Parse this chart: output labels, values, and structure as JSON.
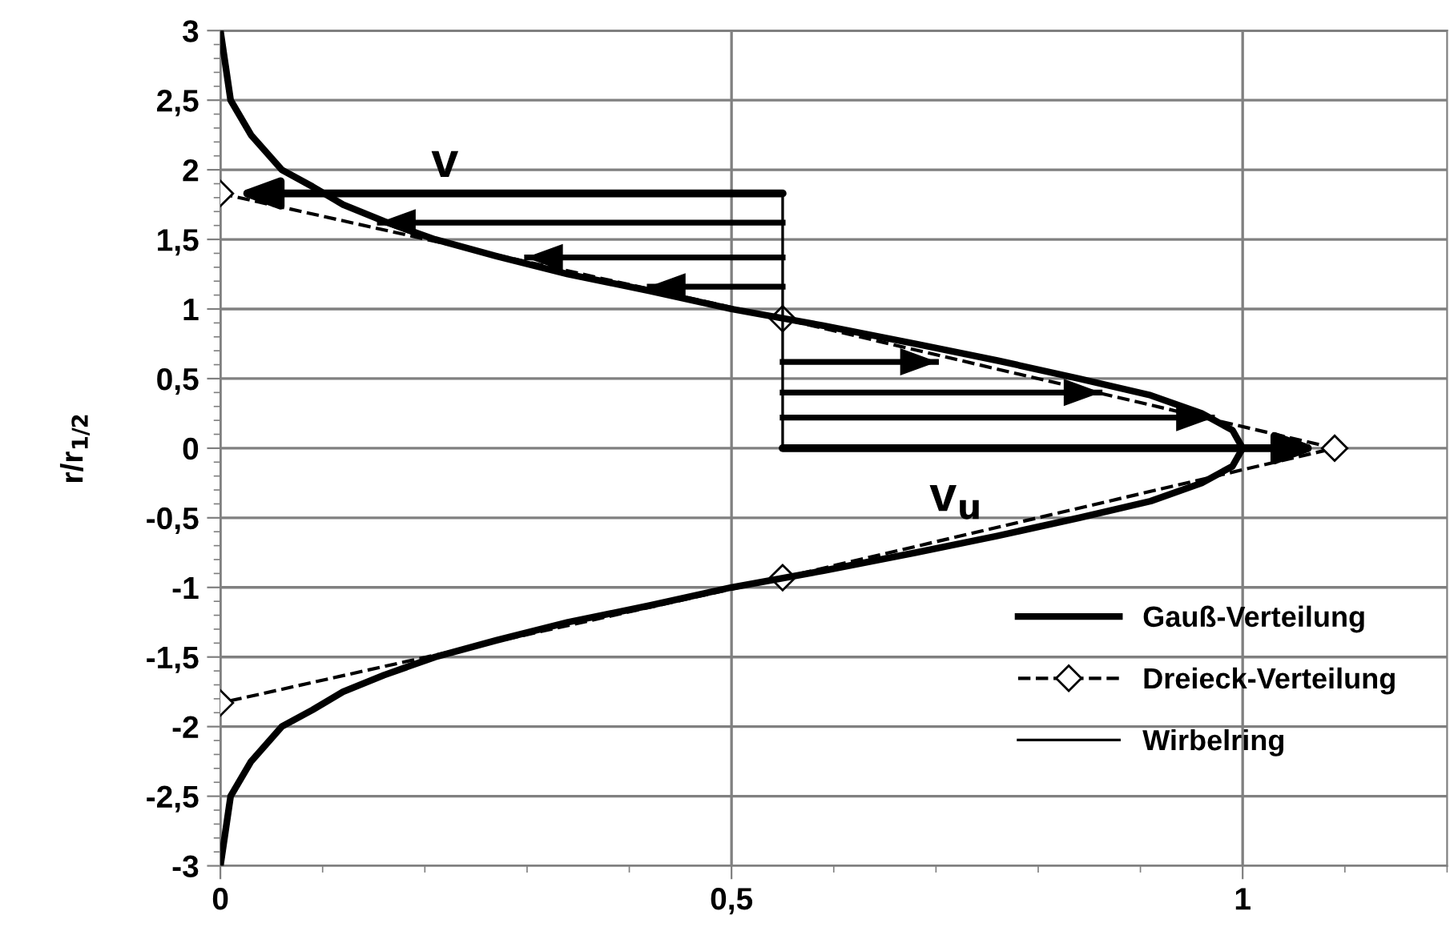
{
  "chart_data": {
    "type": "line",
    "ylabel": "r/r$_{1/2}$",
    "xlim": [
      0,
      1.2
    ],
    "ylim": [
      -3,
      3
    ],
    "xticks": [
      0,
      {
        "value": 0.5,
        "label": "0,5"
      },
      1
    ],
    "yticks": [
      -3,
      {
        "value": -2.5,
        "label": "-2,5"
      },
      -2,
      {
        "value": -1.5,
        "label": "-1,5"
      },
      -1,
      {
        "value": -0.5,
        "label": "-0,5"
      },
      0,
      {
        "value": 0.5,
        "label": "0,5"
      },
      1,
      {
        "value": 1.5,
        "label": "1,5"
      },
      2,
      {
        "value": 2.5,
        "label": "2,5"
      },
      3
    ],
    "grid": true,
    "legend": "bottom right",
    "annotations": [
      "v",
      "v$_{u}$"
    ],
    "series": [
      {
        "name": "Gauß-Verteilung",
        "color": "#000000",
        "line_style": "solid",
        "marker": "none",
        "x": [
          0.0,
          0.005,
          0.01,
          0.03,
          0.06,
          0.09,
          0.12,
          0.16,
          0.21,
          0.27,
          0.34,
          0.42,
          0.5,
          0.59,
          0.68,
          0.76,
          0.84,
          0.91,
          0.96,
          0.99,
          1.0,
          0.99,
          0.96,
          0.91,
          0.84,
          0.76,
          0.68,
          0.59,
          0.5,
          0.42,
          0.34,
          0.27,
          0.21,
          0.16,
          0.12,
          0.09,
          0.06,
          0.03,
          0.01,
          0.005,
          0.0
        ],
        "values": [
          3,
          2.75,
          2.5,
          2.25,
          2,
          1.88,
          1.75,
          1.63,
          1.5,
          1.38,
          1.25,
          1.13,
          1,
          0.88,
          0.75,
          0.63,
          0.5,
          0.38,
          0.25,
          0.13,
          0,
          -0.13,
          -0.25,
          -0.38,
          -0.5,
          -0.63,
          -0.75,
          -0.88,
          -1,
          -1.13,
          -1.25,
          -1.38,
          -1.5,
          -1.63,
          -1.75,
          -1.88,
          -2,
          -2.25,
          -2.5,
          -2.75,
          -3
        ]
      },
      {
        "name": "Dreieck-Verteilung",
        "color": "#000000",
        "line_style": "dashed",
        "marker": "diamond",
        "x": [
          0,
          0.55,
          1.09,
          0.55,
          0
        ],
        "values": [
          1.83,
          0.93,
          0,
          -0.93,
          -1.83
        ]
      },
      {
        "name": "Wirbelring",
        "color": "#000000",
        "line_style": "solid",
        "marker": "none",
        "x": [
          0.55,
          0.55
        ],
        "values": [
          0,
          1.83
        ]
      },
      {
        "color": "#000000",
        "line_style": "solid",
        "x": [
          0.55,
          0.156
        ],
        "values": [
          1.62,
          1.62
        ]
      },
      {
        "color": "#000000",
        "line_style": "solid",
        "x": [
          0.55,
          0.3
        ],
        "values": [
          1.37,
          1.37
        ]
      },
      {
        "color": "#000000",
        "line_style": "solid",
        "x": [
          0.55,
          0.42
        ],
        "values": [
          1.16,
          1.16
        ]
      },
      {
        "color": "#000000",
        "line_style": "solid",
        "x": [
          0.55,
          0.7
        ],
        "values": [
          0.62,
          0.62
        ]
      },
      {
        "color": "#000000",
        "line_style": "solid",
        "x": [
          0.55,
          0.86
        ],
        "values": [
          0.4,
          0.4
        ]
      },
      {
        "color": "#000000",
        "line_style": "solid",
        "x": [
          0.55,
          0.97
        ],
        "values": [
          0.22,
          0.22
        ]
      }
    ]
  }
}
